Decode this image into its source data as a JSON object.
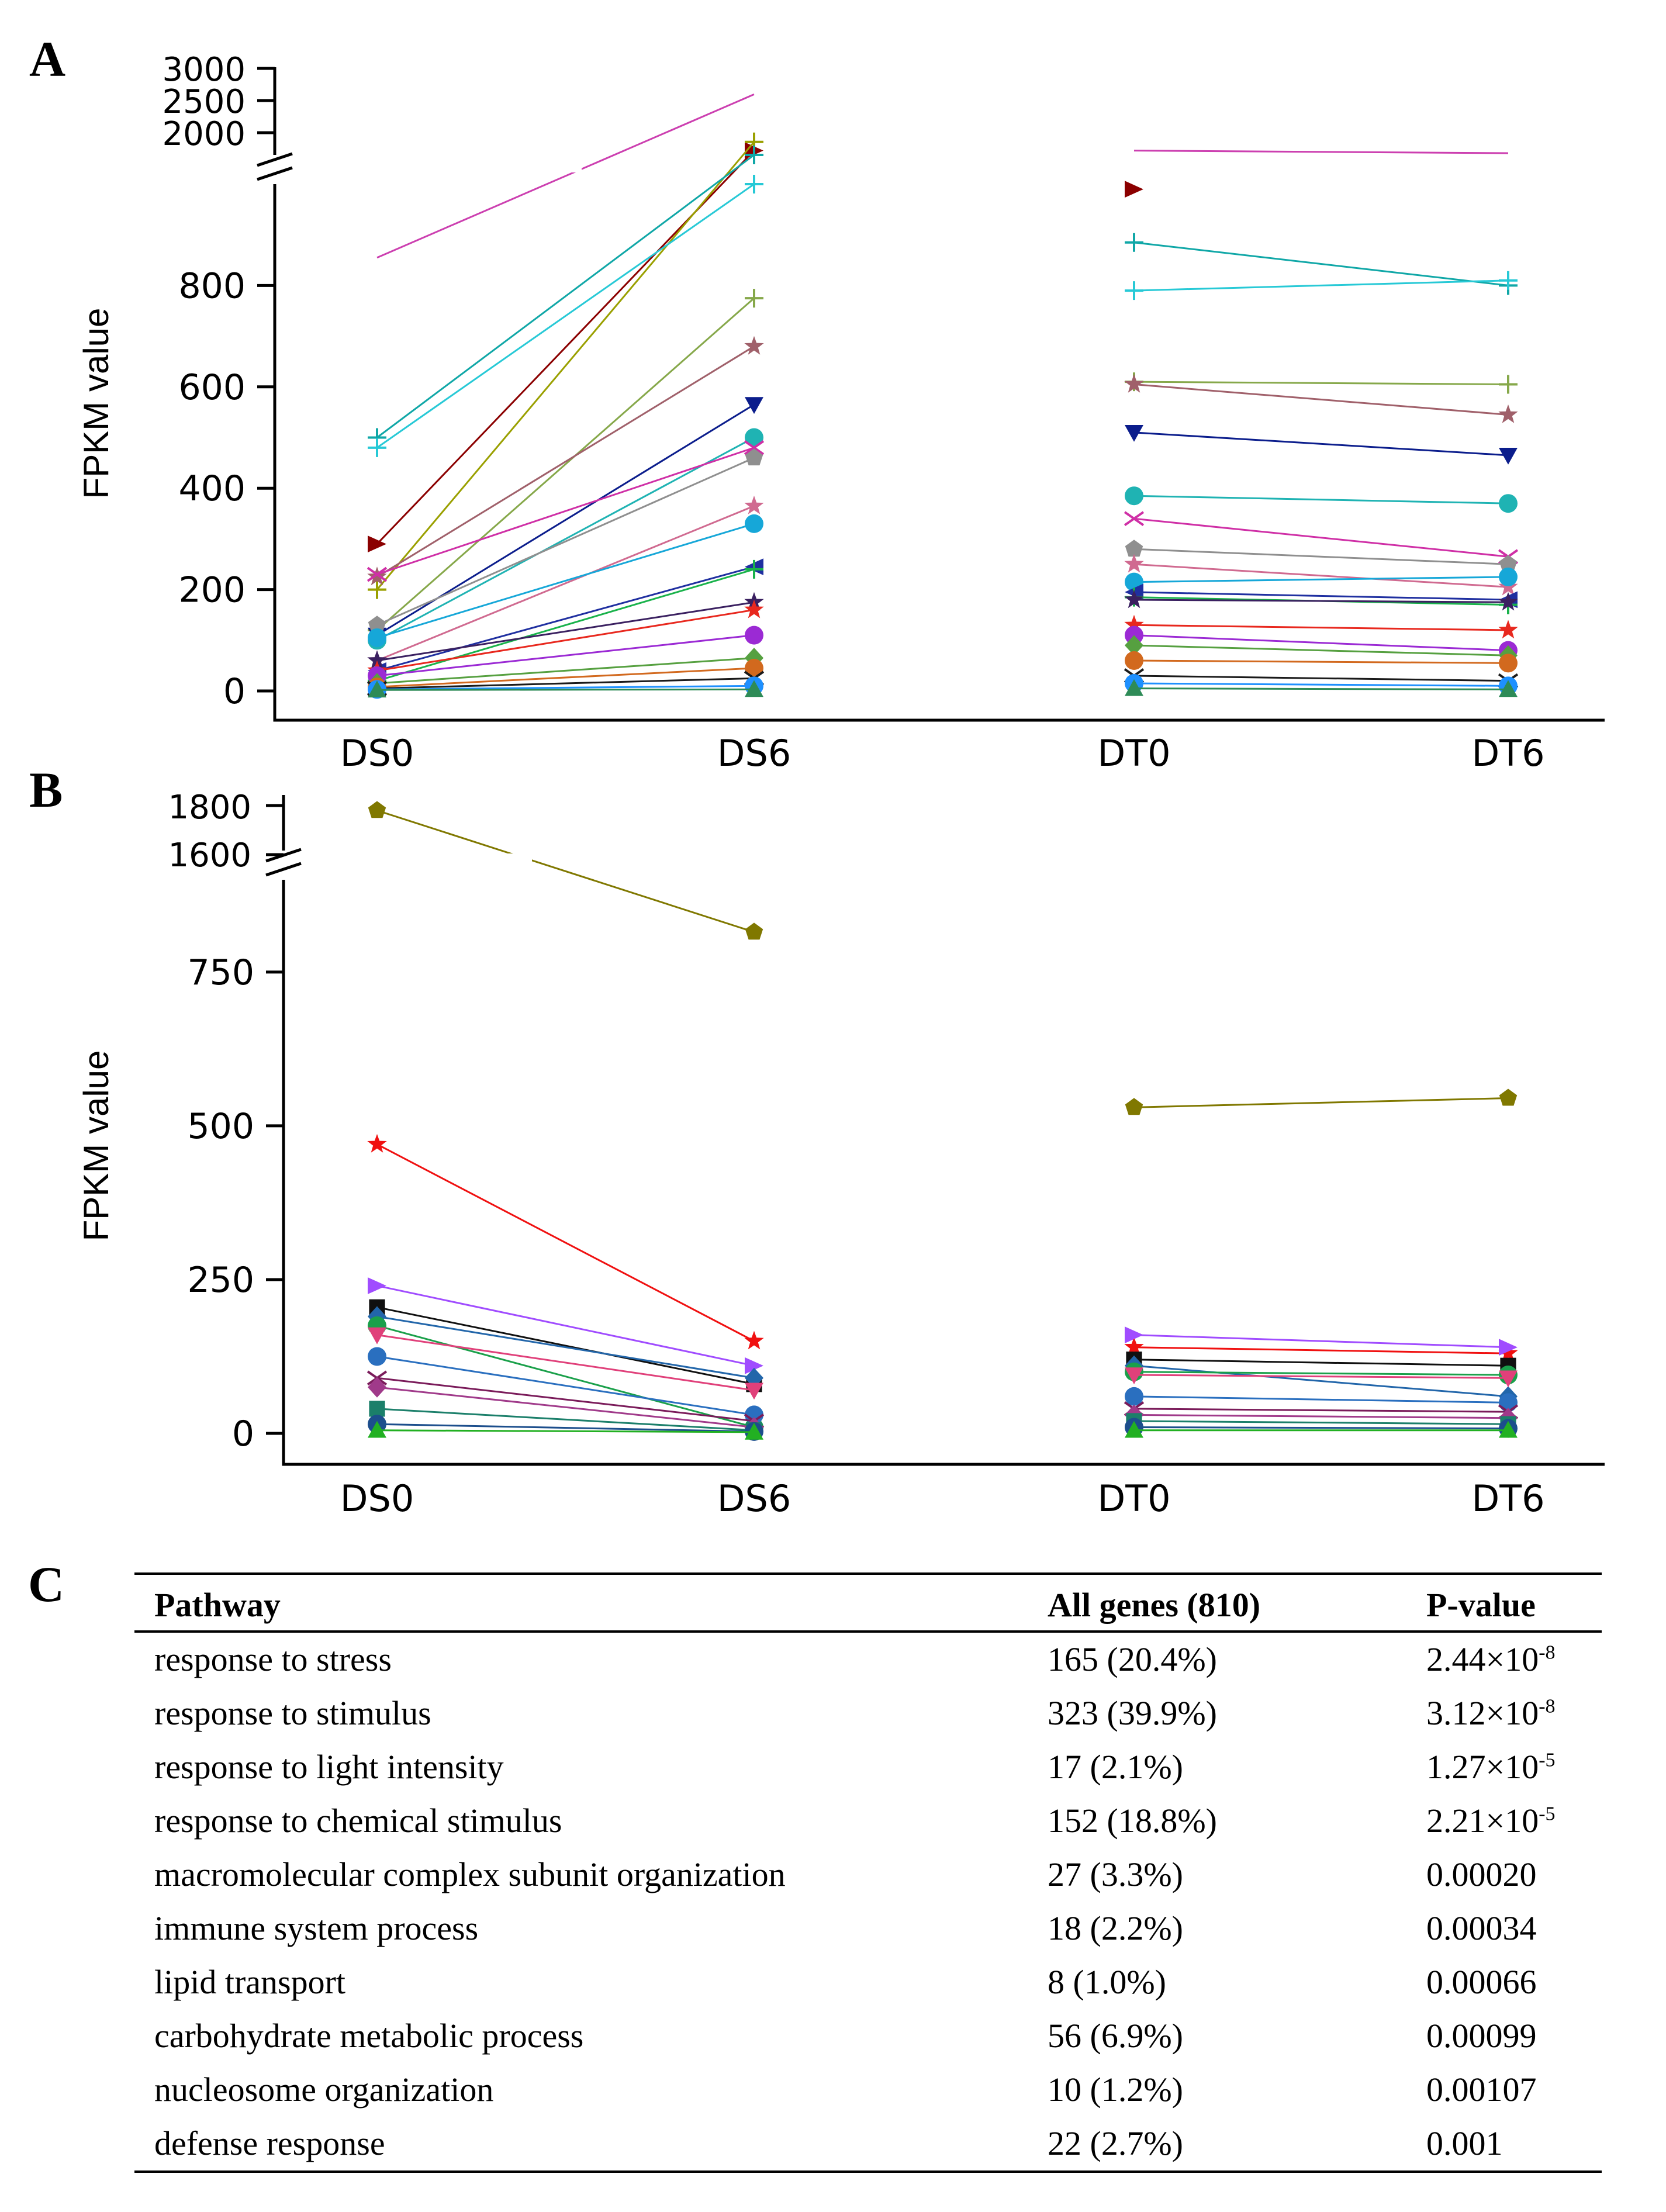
{
  "panels": [
    {
      "letter": "A",
      "ylabel": "FPKM value",
      "upper_ticks": [
        "2000",
        "2500",
        "3000"
      ],
      "lower_ticks": [
        "0",
        "200",
        "400",
        "600",
        "800"
      ],
      "categories": [
        "DS0",
        "DS6",
        "DT0",
        "DT6"
      ]
    },
    {
      "letter": "B",
      "ylabel": "FPKM value",
      "upper_ticks": [
        "1600",
        "1800"
      ],
      "lower_ticks": [
        "0",
        "250",
        "500",
        "750"
      ],
      "categories": [
        "DS0",
        "DS6",
        "DT0",
        "DT6"
      ]
    }
  ],
  "chart_data": [
    {
      "type": "line",
      "panel": "A",
      "categories": [
        "DS0",
        "DS6",
        "DT0",
        "DT6"
      ],
      "ylabel": "FPKM value",
      "ylim_lower": [
        0,
        1000
      ],
      "ylim_upper": [
        2000,
        3000
      ],
      "axis_break": [
        1000,
        2000
      ],
      "series": [
        {
          "ds": [
            855,
            2700
          ],
          "dt": [
            2050,
            2020
          ],
          "color": "#cc3fb0",
          "marker": "none"
        },
        {
          "ds": [
            290,
            2050
          ],
          "dt": [
            990,
            null
          ],
          "color": "#8b0000",
          "marker": "triangle-right"
        },
        {
          "ds": [
            200,
            2150
          ],
          "dt": [
            null,
            null
          ],
          "color": "#9aa000",
          "marker": "plus"
        },
        {
          "ds": [
            500,
            1020
          ],
          "dt": [
            885,
            800
          ],
          "color": "#10a7a7",
          "marker": "plus"
        },
        {
          "ds": [
            480,
            1000
          ],
          "dt": [
            790,
            810
          ],
          "color": "#27c9d6",
          "marker": "plus"
        },
        {
          "ds": [
            120,
            775
          ],
          "dt": [
            610,
            605
          ],
          "color": "#86a84a",
          "marker": "plus"
        },
        {
          "ds": [
            225,
            680
          ],
          "dt": [
            605,
            545
          ],
          "color": "#a0606a",
          "marker": "star"
        },
        {
          "ds": [
            110,
            565
          ],
          "dt": [
            510,
            465
          ],
          "color": "#0b1d8c",
          "marker": "triangle-down"
        },
        {
          "ds": [
            100,
            500
          ],
          "dt": [
            385,
            370
          ],
          "color": "#1fb3b3",
          "marker": "circle"
        },
        {
          "ds": [
            230,
            480
          ],
          "dt": [
            340,
            265
          ],
          "color": "#cf2fa6",
          "marker": "x"
        },
        {
          "ds": [
            130,
            460
          ],
          "dt": [
            280,
            250
          ],
          "color": "#8f8f8f",
          "marker": "pentagon"
        },
        {
          "ds": [
            60,
            365
          ],
          "dt": [
            250,
            205
          ],
          "color": "#d06a90",
          "marker": "star"
        },
        {
          "ds": [
            105,
            330
          ],
          "dt": [
            215,
            225
          ],
          "color": "#16a7d8",
          "marker": "circle"
        },
        {
          "ds": [
            40,
            245
          ],
          "dt": [
            195,
            180
          ],
          "color": "#1f2fa0",
          "marker": "triangle-left"
        },
        {
          "ds": [
            20,
            240
          ],
          "dt": [
            185,
            170
          ],
          "color": "#19b24b",
          "marker": "plus"
        },
        {
          "ds": [
            60,
            175
          ],
          "dt": [
            180,
            175
          ],
          "color": "#3a2060",
          "marker": "star"
        },
        {
          "ds": [
            40,
            160
          ],
          "dt": [
            130,
            120
          ],
          "color": "#e8281e",
          "marker": "star"
        },
        {
          "ds": [
            30,
            110
          ],
          "dt": [
            110,
            80
          ],
          "color": "#9b2ad4",
          "marker": "circle"
        },
        {
          "ds": [
            15,
            65
          ],
          "dt": [
            90,
            70
          ],
          "color": "#56a040",
          "marker": "diamond"
        },
        {
          "ds": [
            8,
            45
          ],
          "dt": [
            60,
            55
          ],
          "color": "#d2691e",
          "marker": "circle"
        },
        {
          "ds": [
            5,
            25
          ],
          "dt": [
            30,
            20
          ],
          "color": "#1a1a1a",
          "marker": "x"
        },
        {
          "ds": [
            3,
            10
          ],
          "dt": [
            15,
            10
          ],
          "color": "#1e90ff",
          "marker": "circle"
        },
        {
          "ds": [
            2,
            3
          ],
          "dt": [
            5,
            3
          ],
          "color": "#2e8b57",
          "marker": "triangle-up"
        }
      ]
    },
    {
      "type": "line",
      "panel": "B",
      "categories": [
        "DS0",
        "DS6",
        "DT0",
        "DT6"
      ],
      "ylabel": "FPKM value",
      "ylim_lower": [
        0,
        900
      ],
      "ylim_upper": [
        1600,
        1800
      ],
      "axis_break": [
        900,
        1600
      ],
      "series": [
        {
          "ds": [
            1780,
            815
          ],
          "dt": [
            530,
            545
          ],
          "color": "#807800",
          "marker": "pentagon"
        },
        {
          "ds": [
            470,
            150
          ],
          "dt": [
            140,
            130
          ],
          "color": "#f01010",
          "marker": "star"
        },
        {
          "ds": [
            240,
            110
          ],
          "dt": [
            160,
            140
          ],
          "color": "#a04cff",
          "marker": "triangle-right"
        },
        {
          "ds": [
            205,
            80
          ],
          "dt": [
            120,
            110
          ],
          "color": "#101010",
          "marker": "square"
        },
        {
          "ds": [
            190,
            90
          ],
          "dt": [
            110,
            60
          ],
          "color": "#2266aa",
          "marker": "diamond"
        },
        {
          "ds": [
            175,
            10
          ],
          "dt": [
            100,
            95
          ],
          "color": "#1aa04a",
          "marker": "circle"
        },
        {
          "ds": [
            160,
            70
          ],
          "dt": [
            95,
            90
          ],
          "color": "#e0407a",
          "marker": "triangle-down"
        },
        {
          "ds": [
            125,
            30
          ],
          "dt": [
            60,
            50
          ],
          "color": "#2a6fbf",
          "marker": "circle"
        },
        {
          "ds": [
            90,
            20
          ],
          "dt": [
            40,
            35
          ],
          "color": "#7a1b5a",
          "marker": "x"
        },
        {
          "ds": [
            75,
            10
          ],
          "dt": [
            30,
            25
          ],
          "color": "#a03a8a",
          "marker": "diamond"
        },
        {
          "ds": [
            40,
            5
          ],
          "dt": [
            20,
            15
          ],
          "color": "#1b7f6a",
          "marker": "square"
        },
        {
          "ds": [
            15,
            3
          ],
          "dt": [
            10,
            8
          ],
          "color": "#1c4e8c",
          "marker": "circle"
        },
        {
          "ds": [
            5,
            2
          ],
          "dt": [
            5,
            5
          ],
          "color": "#22b022",
          "marker": "triangle-up"
        }
      ]
    }
  ],
  "table": {
    "letter": "C",
    "headers": [
      "Pathway",
      "All genes (810)",
      "P-value"
    ],
    "rows": [
      {
        "pathway": "response to stress",
        "genes": "165 (20.4%)",
        "p_base": "2.44×10",
        "p_exp": "-8"
      },
      {
        "pathway": "response to stimulus",
        "genes": "323 (39.9%)",
        "p_base": "3.12×10",
        "p_exp": "-8"
      },
      {
        "pathway": "response to light intensity",
        "genes": "17 (2.1%)",
        "p_base": "1.27×10",
        "p_exp": "-5"
      },
      {
        "pathway": "response to chemical stimulus",
        "genes": "152 (18.8%)",
        "p_base": "2.21×10",
        "p_exp": "-5"
      },
      {
        "pathway": "macromolecular complex subunit organization",
        "genes": "27 (3.3%)",
        "p_base": "0.00020",
        "p_exp": ""
      },
      {
        "pathway": "immune system process",
        "genes": "18 (2.2%)",
        "p_base": "0.00034",
        "p_exp": ""
      },
      {
        "pathway": "lipid transport",
        "genes": "8 (1.0%)",
        "p_base": "0.00066",
        "p_exp": ""
      },
      {
        "pathway": "carbohydrate metabolic process",
        "genes": "56 (6.9%)",
        "p_base": "0.00099",
        "p_exp": ""
      },
      {
        "pathway": "nucleosome organization",
        "genes": "10 (1.2%)",
        "p_base": "0.00107",
        "p_exp": ""
      },
      {
        "pathway": "defense response",
        "genes": "22 (2.7%)",
        "p_base": "0.001",
        "p_exp": ""
      }
    ]
  }
}
